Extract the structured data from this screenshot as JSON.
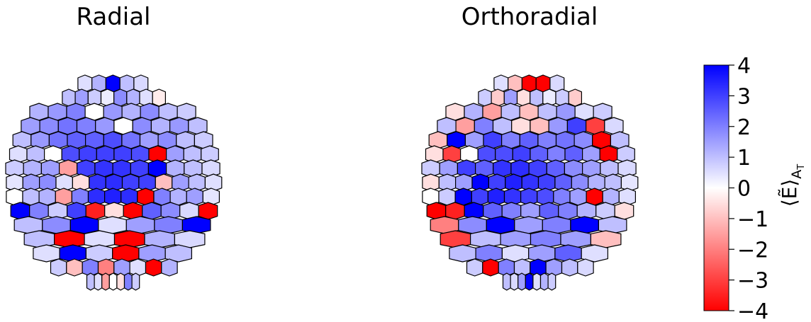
{
  "chart_data": {
    "type": "heatmap",
    "panels": [
      {
        "title": "Radial",
        "cells": [
          {
            "row": 0,
            "values": [
              0.5,
              1.2,
              4.0,
              1.0,
              0.6
            ]
          },
          {
            "row": 1,
            "values": [
              1.0,
              1.5,
              0.8,
              0.3,
              1.8,
              1.2,
              0.5,
              -0.3
            ]
          },
          {
            "row": 2,
            "values": [
              1.2,
              1.6,
              2.0,
              0.0,
              1.6,
              1.2,
              1.8,
              1.0,
              0.8
            ]
          },
          {
            "row": 3,
            "values": [
              1.5,
              1.8,
              2.2,
              2.0,
              1.6,
              0.0,
              1.8,
              1.2,
              1.6,
              1.0
            ]
          },
          {
            "row": 4,
            "values": [
              1.0,
              1.6,
              2.2,
              2.5,
              2.5,
              2.8,
              2.2,
              1.5,
              1.8,
              1.0,
              0.8
            ]
          },
          {
            "row": 5,
            "values": [
              0.5,
              1.0,
              0.0,
              2.8,
              3.0,
              3.0,
              3.0,
              2.8,
              -4.0,
              1.5,
              1.0,
              0.8
            ]
          },
          {
            "row": 6,
            "values": [
              0.8,
              1.2,
              1.5,
              -1.5,
              3.0,
              3.2,
              3.2,
              3.0,
              4.0,
              1.2,
              1.0,
              0.6
            ]
          },
          {
            "row": 7,
            "values": [
              0.4,
              1.5,
              1.8,
              0.5,
              -0.5,
              3.2,
              3.3,
              3.0,
              3.0,
              -1.0,
              1.5,
              1.0,
              0.5
            ]
          },
          {
            "row": 8,
            "values": [
              0.0,
              1.0,
              1.2,
              -1.5,
              2.0,
              3.3,
              3.5,
              3.3,
              -4.0,
              2.0,
              1.2,
              1.5,
              0.4
            ]
          },
          {
            "row": 9,
            "values": [
              4.0,
              2.0,
              0.8,
              3.0,
              -3.5,
              -0.5,
              -4.0,
              2.5,
              1.8,
              0.6,
              -4.0
            ]
          },
          {
            "row": 10,
            "values": [
              1.0,
              1.8,
              4.0,
              0.5,
              1.5,
              2.0,
              4.0
            ]
          },
          {
            "row": 11,
            "values": [
              1.0,
              -4.0,
              0.5,
              -4.0,
              1.2,
              0.6
            ]
          },
          {
            "row": 12,
            "values": [
              0.5,
              4.0,
              0.8,
              -4.0,
              1.5,
              1.0
            ]
          },
          {
            "row": 13,
            "values": [
              0.8,
              -1.0,
              2.0,
              -2.0,
              1.5,
              0.5,
              -4.0,
              1.2
            ]
          },
          {
            "row": 14,
            "values": [
              1.0,
              0.5,
              -1.5,
              0.0,
              -0.5,
              2.0,
              0.8
            ]
          }
        ]
      },
      {
        "title": "Orthoradial",
        "cells": [
          {
            "row": 0,
            "values": [
              0.5,
              -1.0,
              -4.0,
              -4.0,
              0.6
            ]
          },
          {
            "row": 1,
            "values": [
              0.8,
              -0.8,
              1.5,
              -0.5,
              1.0,
              0.3,
              0.8,
              -0.8
            ]
          },
          {
            "row": 2,
            "values": [
              -0.5,
              1.2,
              -1.5,
              1.0,
              -1.0,
              1.0,
              1.6,
              0.5,
              0.8
            ]
          },
          {
            "row": 3,
            "values": [
              1.0,
              -1.5,
              2.0,
              1.0,
              -0.5,
              -1.0,
              1.6,
              3.0,
              -3.0,
              0.6
            ]
          },
          {
            "row": 4,
            "values": [
              -1.0,
              4.0,
              1.5,
              3.0,
              2.0,
              2.5,
              2.0,
              2.2,
              1.8,
              -4.0,
              1.0
            ]
          },
          {
            "row": 5,
            "values": [
              -0.5,
              -3.0,
              0.0,
              2.8,
              2.8,
              3.0,
              2.5,
              2.0,
              2.5,
              1.5,
              -4.0,
              0.8
            ]
          },
          {
            "row": 6,
            "values": [
              0.8,
              1.5,
              3.0,
              2.5,
              3.2,
              3.3,
              3.0,
              2.5,
              1.8,
              1.5,
              1.0,
              0.6
            ]
          },
          {
            "row": 7,
            "values": [
              -0.5,
              1.0,
              1.5,
              4.0,
              3.0,
              3.5,
              3.2,
              3.0,
              2.5,
              1.8,
              1.2,
              1.0,
              0.4
            ]
          },
          {
            "row": 8,
            "values": [
              0.0,
              0.8,
              4.0,
              3.0,
              3.5,
              3.2,
              3.0,
              2.8,
              2.0,
              1.5,
              -4.0,
              1.2,
              0.5
            ]
          },
          {
            "row": 9,
            "values": [
              -4.0,
              -3.5,
              4.0,
              2.5,
              2.0,
              1.5,
              2.5,
              2.0,
              1.2,
              0.8,
              -0.5
            ]
          },
          {
            "row": 10,
            "values": [
              -2.0,
              1.8,
              4.0,
              1.5,
              2.0,
              4.0,
              1.0
            ]
          },
          {
            "row": 11,
            "values": [
              -3.0,
              1.0,
              1.5,
              2.0,
              1.5,
              -1.0
            ]
          },
          {
            "row": 12,
            "values": [
              1.0,
              2.0,
              0.5,
              1.5,
              2.5,
              0.5
            ]
          },
          {
            "row": 13,
            "values": [
              0.8,
              -4.0,
              2.0,
              1.0,
              4.0,
              1.5,
              1.0,
              0.6
            ]
          },
          {
            "row": 14,
            "values": [
              1.0,
              0.6,
              1.5,
              4.0,
              0.5,
              1.2,
              0.8
            ]
          }
        ]
      }
    ],
    "colorbar": {
      "label": "⟨Ẽ⟩",
      "label_subscript": "A",
      "label_subsubscript": "T",
      "ticks": [
        "4",
        "3",
        "2",
        "1",
        "0",
        "−1",
        "−2",
        "−3",
        "−4"
      ],
      "vmin": -4,
      "vmax": 4,
      "colormap": "bwr",
      "low_color": "#ff0000",
      "mid_color": "#ffffff",
      "high_color": "#0000ff"
    }
  }
}
